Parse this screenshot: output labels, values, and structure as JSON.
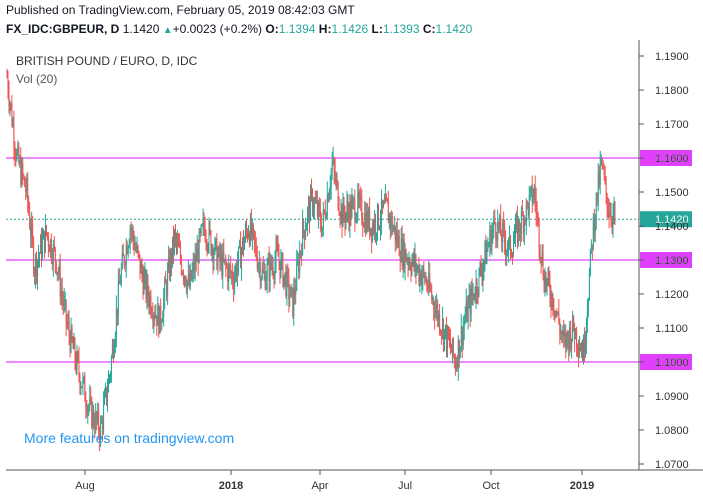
{
  "header": {
    "published": "Published on TradingView.com, February 05, 2019 08:42:03 GMT",
    "symbol": "FX_IDC:GBPEUR, D",
    "last": "1.1420",
    "change_arrow": "▲",
    "change": "+0.0023 (+0.2%)",
    "o_label": "O:",
    "o": "1.1394",
    "h_label": "H:",
    "h": "1.1426",
    "l_label": "L:",
    "l": "1.1393",
    "c_label": "C:",
    "c": "1.1420"
  },
  "chart_title": "BRITISH POUND / EURO, D, IDC",
  "volume_label": "Vol (20)",
  "watermark": "More features on tradingview.com",
  "colors": {
    "up": "#26a69a",
    "down": "#ef5350",
    "hline": "#e040fb",
    "last_price": "#26a69a",
    "watermark": "#2196f3"
  },
  "chart_data": {
    "type": "candlestick",
    "y_axis": {
      "ticks": [
        "1.0700",
        "1.0800",
        "1.0900",
        "1.1000",
        "1.1100",
        "1.1200",
        "1.1300",
        "1.1400",
        "1.1500",
        "1.1600",
        "1.1700",
        "1.1800",
        "1.1900"
      ],
      "range": [
        1.066,
        1.195
      ]
    },
    "x_axis": {
      "ticks": [
        "Aug",
        "2018",
        "Apr",
        "Jul",
        "Oct",
        "2019"
      ]
    },
    "horizontal_lines": [
      {
        "value": 1.16,
        "label": "1.1600"
      },
      {
        "value": 1.13,
        "label": "1.1300"
      },
      {
        "value": 1.1,
        "label": "1.1000"
      }
    ],
    "last_price": {
      "value": 1.142,
      "label": "1.1420"
    },
    "price_path": [
      {
        "t": 0,
        "v": 1.184
      },
      {
        "t": 10,
        "v": 1.16
      },
      {
        "t": 20,
        "v": 1.15
      },
      {
        "t": 28,
        "v": 1.128
      },
      {
        "t": 40,
        "v": 1.138
      },
      {
        "t": 50,
        "v": 1.13
      },
      {
        "t": 60,
        "v": 1.112
      },
      {
        "t": 70,
        "v": 1.1
      },
      {
        "t": 85,
        "v": 1.085
      },
      {
        "t": 95,
        "v": 1.08
      },
      {
        "t": 105,
        "v": 1.098
      },
      {
        "t": 115,
        "v": 1.125
      },
      {
        "t": 125,
        "v": 1.14
      },
      {
        "t": 140,
        "v": 1.122
      },
      {
        "t": 155,
        "v": 1.112
      },
      {
        "t": 170,
        "v": 1.136
      },
      {
        "t": 185,
        "v": 1.122
      },
      {
        "t": 200,
        "v": 1.14
      },
      {
        "t": 215,
        "v": 1.13
      },
      {
        "t": 230,
        "v": 1.125
      },
      {
        "t": 245,
        "v": 1.14
      },
      {
        "t": 260,
        "v": 1.125
      },
      {
        "t": 275,
        "v": 1.131
      },
      {
        "t": 290,
        "v": 1.117
      },
      {
        "t": 300,
        "v": 1.138
      },
      {
        "t": 310,
        "v": 1.148
      },
      {
        "t": 320,
        "v": 1.14
      },
      {
        "t": 330,
        "v": 1.158
      },
      {
        "t": 340,
        "v": 1.143
      },
      {
        "t": 355,
        "v": 1.146
      },
      {
        "t": 370,
        "v": 1.14
      },
      {
        "t": 385,
        "v": 1.145
      },
      {
        "t": 400,
        "v": 1.133
      },
      {
        "t": 415,
        "v": 1.128
      },
      {
        "t": 425,
        "v": 1.124
      },
      {
        "t": 440,
        "v": 1.112
      },
      {
        "t": 455,
        "v": 1.1
      },
      {
        "t": 465,
        "v": 1.113
      },
      {
        "t": 480,
        "v": 1.126
      },
      {
        "t": 495,
        "v": 1.141
      },
      {
        "t": 510,
        "v": 1.133
      },
      {
        "t": 520,
        "v": 1.14
      },
      {
        "t": 535,
        "v": 1.15
      },
      {
        "t": 545,
        "v": 1.125
      },
      {
        "t": 555,
        "v": 1.118
      },
      {
        "t": 565,
        "v": 1.105
      },
      {
        "t": 575,
        "v": 1.11
      },
      {
        "t": 585,
        "v": 1.103
      },
      {
        "t": 595,
        "v": 1.14
      },
      {
        "t": 603,
        "v": 1.158
      },
      {
        "t": 610,
        "v": 1.146
      },
      {
        "t": 617,
        "v": 1.142
      }
    ]
  }
}
